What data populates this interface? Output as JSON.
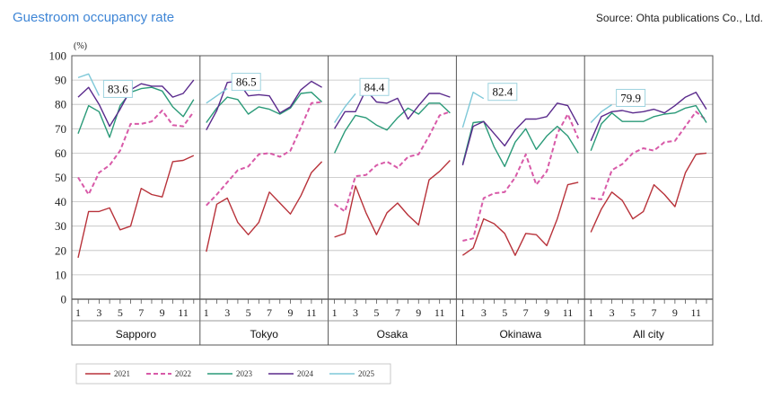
{
  "header": {
    "title": "Guestroom occupancy rate",
    "source": "Source: Ohta publications Co., Ltd."
  },
  "chart_data": {
    "type": "line",
    "unit": "(%)",
    "ylim": [
      0,
      100
    ],
    "y_ticks": [
      0,
      10,
      20,
      30,
      40,
      50,
      60,
      70,
      80,
      90,
      100
    ],
    "x_tick_labels": [
      "1",
      "3",
      "5",
      "7",
      "9",
      "11"
    ],
    "grid": "horizontal",
    "legend_position": "bottom-left",
    "colors": {
      "2021": "#b8323a",
      "2022": "#d85aa8",
      "2023": "#2a9a78",
      "2024": "#5a2a8c",
      "2025": "#7ec8d8"
    },
    "legend": [
      {
        "name": "2021",
        "style": "solid"
      },
      {
        "name": "2022",
        "style": "dashed"
      },
      {
        "name": "2023",
        "style": "solid"
      },
      {
        "name": "2024",
        "style": "solid"
      },
      {
        "name": "2025",
        "style": "solid"
      }
    ],
    "panels": [
      {
        "city": "Sapporo",
        "callout": "83.6",
        "series": {
          "2021": [
            17,
            36,
            36,
            37.5,
            28.5,
            30,
            45.5,
            43,
            42,
            56.5,
            57,
            59
          ],
          "2022": [
            50,
            43,
            52,
            55,
            61,
            72,
            72,
            73,
            77.5,
            71.5,
            71,
            77
          ],
          "2023": [
            68,
            79.5,
            77,
            66.5,
            79.5,
            85,
            86.5,
            87,
            85.5,
            79,
            75,
            82
          ],
          "2024": [
            83,
            87,
            80,
            71,
            78,
            86,
            88.5,
            87.5,
            87.5,
            83,
            84.5,
            90
          ],
          "2025": [
            91,
            92.5,
            83.6
          ]
        }
      },
      {
        "city": "Tokyo",
        "callout": "86.5",
        "series": {
          "2021": [
            19.5,
            39,
            41.5,
            31.5,
            26.5,
            31.5,
            44,
            39.5,
            35,
            42.5,
            52,
            56.5
          ],
          "2022": [
            38.5,
            43,
            48,
            53,
            54.5,
            59.5,
            60,
            58.5,
            61,
            70.5,
            80.5,
            81
          ],
          "2023": [
            72.5,
            78.5,
            83,
            82,
            76,
            79,
            78,
            76,
            78.5,
            84.5,
            85,
            81
          ],
          "2024": [
            69.5,
            77.5,
            89,
            89.5,
            83.5,
            84,
            83.5,
            76.5,
            79,
            86,
            89.5,
            87
          ],
          "2025": [
            80.5,
            83.5,
            86.5
          ]
        }
      },
      {
        "city": "Osaka",
        "callout": "84.4",
        "series": {
          "2021": [
            25.5,
            27,
            46.5,
            35.5,
            26.5,
            35.5,
            39.5,
            34.5,
            30.5,
            49,
            52.5,
            57
          ],
          "2022": [
            39,
            36,
            50.5,
            51,
            55,
            56.5,
            54,
            58.5,
            59.5,
            67,
            75.5,
            77
          ],
          "2023": [
            60,
            69,
            75.5,
            74.5,
            71.5,
            69.5,
            74.5,
            78.5,
            76,
            80.5,
            80.5,
            76.5
          ],
          "2024": [
            70,
            77,
            77,
            86,
            81,
            80.5,
            82.5,
            74,
            79.5,
            84.5,
            84.5,
            83
          ],
          "2025": [
            72.5,
            79,
            84.4
          ]
        }
      },
      {
        "city": "Okinawa",
        "callout": "82.4",
        "series": {
          "2021": [
            18,
            21,
            33,
            31,
            27,
            18,
            27,
            26.5,
            22,
            33,
            47,
            48
          ],
          "2022": [
            24,
            25,
            41.5,
            43.5,
            44,
            50,
            59.5,
            47,
            52.5,
            68,
            76,
            66
          ],
          "2023": [
            55.5,
            72.5,
            73,
            62.5,
            54.5,
            64.5,
            70,
            61.5,
            67,
            71,
            67,
            60
          ],
          "2024": [
            55,
            71,
            73,
            68,
            63,
            69.5,
            74,
            74,
            75,
            80.5,
            79.5,
            71.5
          ],
          "2025": [
            70.5,
            85,
            82.4
          ]
        }
      },
      {
        "city": "All city",
        "callout": "79.9",
        "series": {
          "2021": [
            27.5,
            37,
            44,
            40.5,
            33,
            36,
            47,
            43,
            38,
            52,
            59.5,
            60
          ],
          "2022": [
            41.5,
            41,
            53,
            55.5,
            60,
            62,
            61,
            64.5,
            65,
            71,
            77,
            73.5
          ],
          "2023": [
            61,
            72,
            76.5,
            73,
            73,
            73,
            75,
            76,
            76.5,
            78.5,
            79.5,
            72.5
          ],
          "2024": [
            65,
            75,
            77,
            77.5,
            76.5,
            77,
            78,
            76.5,
            79.5,
            83,
            85,
            78
          ],
          "2025": [
            72.5,
            77,
            79.9
          ]
        }
      }
    ]
  }
}
